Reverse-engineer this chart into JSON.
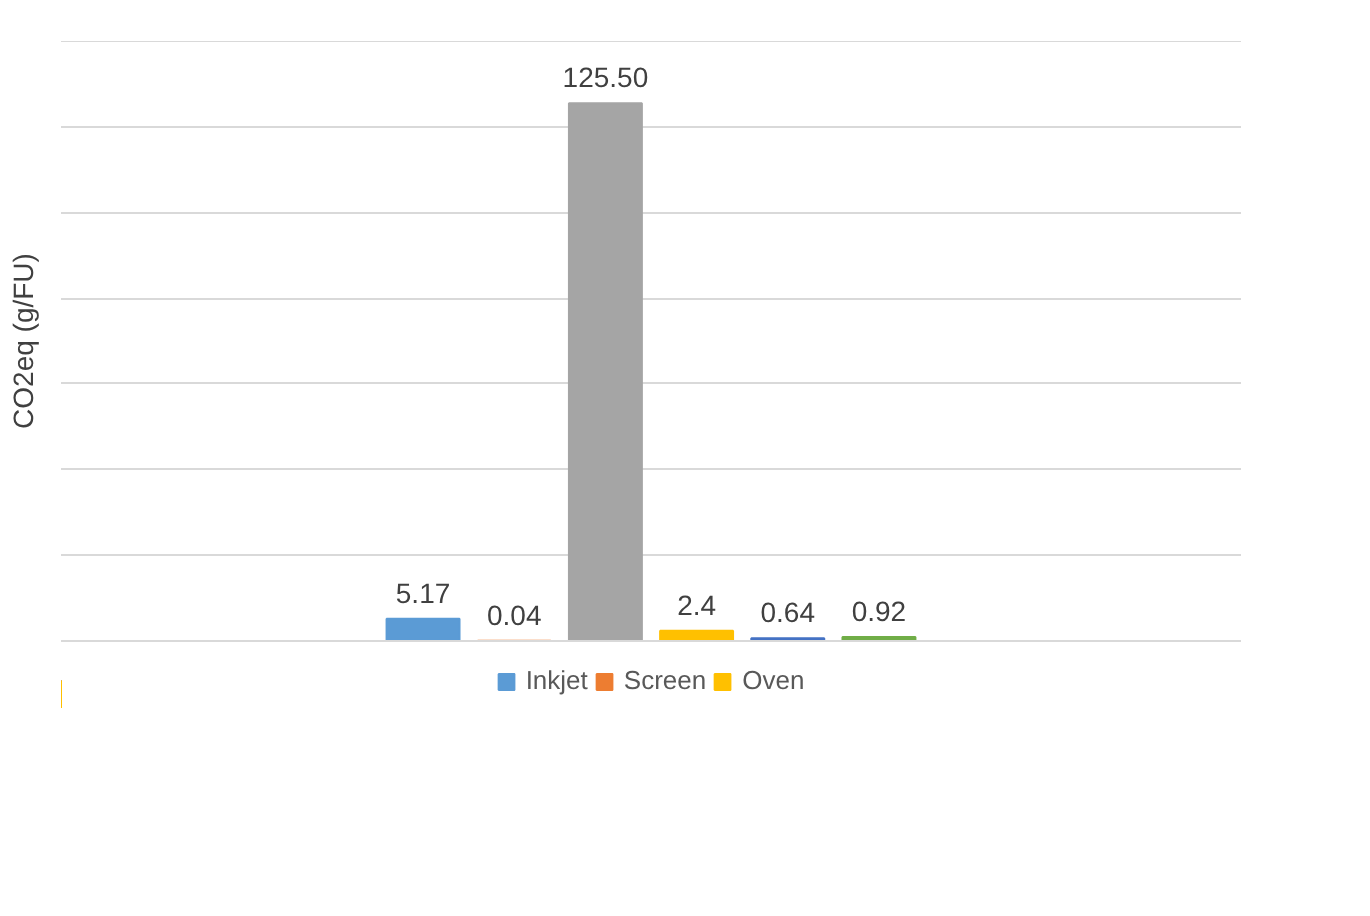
{
  "chart_data": {
    "type": "bar",
    "ylabel": "CO2eq (g/FU)",
    "categories": [
      null
    ],
    "ylim": [
      0,
      140
    ],
    "yticks": [
      {
        "value": 0,
        "label": null
      },
      {
        "value": 20,
        "label": null
      },
      {
        "value": 40,
        "label": null
      },
      {
        "value": 60,
        "label": null
      },
      {
        "value": 80,
        "label": null
      },
      {
        "value": 100,
        "label": null
      },
      {
        "value": 120,
        "label": null
      },
      {
        "value": 140,
        "label": null
      }
    ],
    "grid": "y",
    "legend": "bottom",
    "series": [
      {
        "name": "Inkjet",
        "color": "#5b9bd5",
        "values": [
          5.17
        ],
        "value_labels": [
          "5.17"
        ]
      },
      {
        "name": "Screen",
        "color": "#ed7d31",
        "values": [
          0.04
        ],
        "value_labels": [
          "0.04"
        ]
      },
      {
        "color": "#a5a5a5",
        "values": [
          125.5
        ],
        "value_labels": [
          "125.50"
        ]
      },
      {
        "name": "Oven",
        "color": "#ffc000",
        "values": [
          2.4
        ],
        "value_labels": [
          "2.4"
        ]
      },
      {
        "color": "#4472c4",
        "values": [
          0.64
        ],
        "value_labels": [
          "0.64"
        ]
      },
      {
        "color": "#70ad47",
        "values": [
          0.92
        ],
        "value_labels": [
          "0.92"
        ]
      }
    ]
  }
}
